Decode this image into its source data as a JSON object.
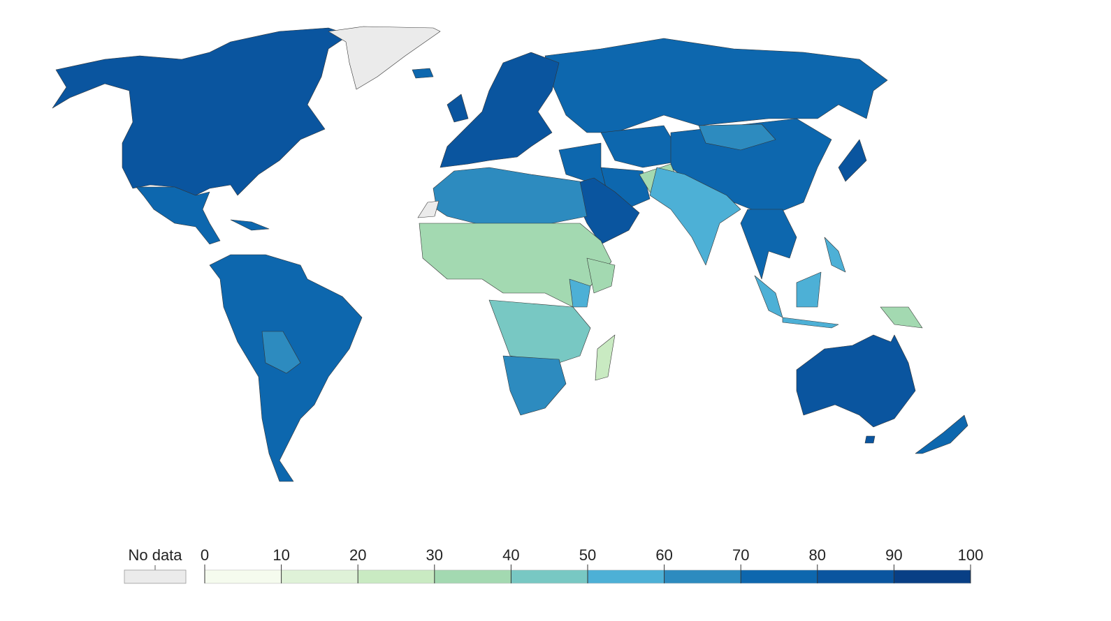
{
  "map": {
    "legend": {
      "no_data_label": "No data",
      "no_data_color": "#ebebeb",
      "lim": [
        0,
        100
      ],
      "ticks": [
        0,
        10,
        20,
        30,
        40,
        50,
        60,
        70,
        80,
        90,
        100
      ],
      "colors": [
        "#f5fbee",
        "#dff2d8",
        "#c9eac2",
        "#a3d9b1",
        "#78c8c3",
        "#4db0d6",
        "#2d8bbf",
        "#0d67ae",
        "#0a559f",
        "#083f85"
      ]
    }
  }
}
